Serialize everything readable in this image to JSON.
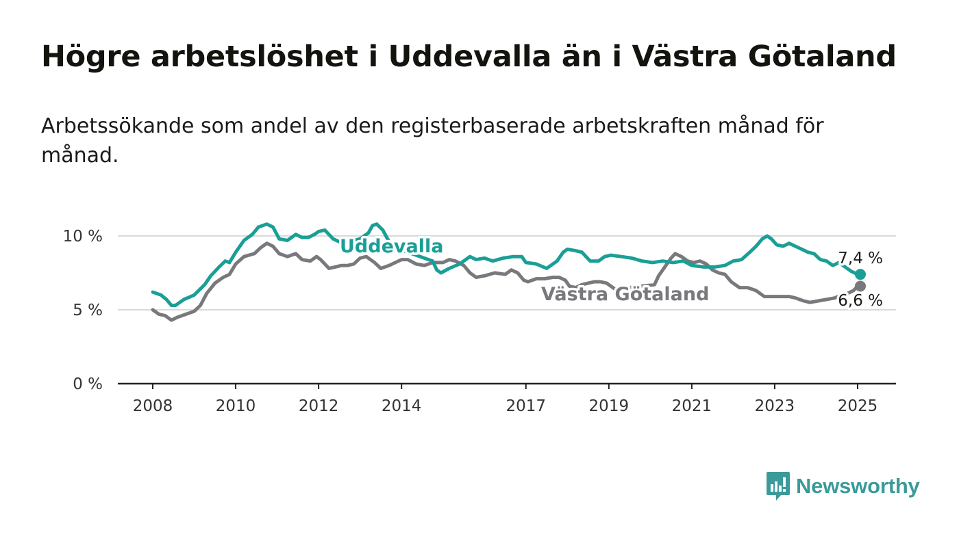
{
  "title": "Högre arbetslöshet i Uddevalla än i Västra Götaland",
  "subtitle": "Arbetssökande som andel av den registerbaserade arbetskraften månad för månad.",
  "brand": {
    "name": "Newsworthy",
    "color": "#3b9a9a",
    "icon": "newsworthy-logo-icon"
  },
  "chart_data": {
    "type": "line",
    "title": "Högre arbetslöshet i Uddevalla än i Västra Götaland",
    "subtitle": "Arbetssökande som andel av den registerbaserade arbetskraften månad för månad.",
    "xlabel": "",
    "ylabel": "",
    "x_unit": "year (decimal, monthly)",
    "xlim": [
      2008,
      2025
    ],
    "ylim": [
      0,
      10
    ],
    "x_ticks": [
      2008,
      2010,
      2012,
      2014,
      2017,
      2019,
      2021,
      2023,
      2025
    ],
    "y_ticks": [
      0,
      5,
      10
    ],
    "y_tick_labels": [
      "0 %",
      "5 %",
      "10 %"
    ],
    "x_tick_labels": [
      "2008",
      "2010",
      "2012",
      "2014",
      "2017",
      "2019",
      "2021",
      "2023",
      "2025"
    ],
    "grid": "horizontal",
    "legend": "inline labels",
    "series": [
      {
        "name": "Uddevalla",
        "color": "#1a9f96",
        "end_label": "7,4 %",
        "points": [
          [
            2008.0,
            6.2
          ],
          [
            2008.2,
            6.0
          ],
          [
            2008.33,
            5.7
          ],
          [
            2008.45,
            5.3
          ],
          [
            2008.55,
            5.3
          ],
          [
            2008.75,
            5.7
          ],
          [
            2009.0,
            6.0
          ],
          [
            2009.25,
            6.7
          ],
          [
            2009.4,
            7.3
          ],
          [
            2009.6,
            7.9
          ],
          [
            2009.75,
            8.3
          ],
          [
            2009.85,
            8.2
          ],
          [
            2010.0,
            8.9
          ],
          [
            2010.2,
            9.7
          ],
          [
            2010.4,
            10.1
          ],
          [
            2010.55,
            10.6
          ],
          [
            2010.75,
            10.8
          ],
          [
            2010.9,
            10.6
          ],
          [
            2011.05,
            9.8
          ],
          [
            2011.25,
            9.7
          ],
          [
            2011.45,
            10.1
          ],
          [
            2011.6,
            9.9
          ],
          [
            2011.75,
            9.9
          ],
          [
            2011.9,
            10.1
          ],
          [
            2012.0,
            10.3
          ],
          [
            2012.15,
            10.4
          ],
          [
            2012.35,
            9.8
          ],
          [
            2012.5,
            9.6
          ],
          [
            2012.6,
            9.6
          ],
          [
            2012.7,
            9.5
          ],
          [
            2012.85,
            9.7
          ],
          [
            2013.0,
            9.8
          ],
          [
            2013.2,
            10.2
          ],
          [
            2013.3,
            10.7
          ],
          [
            2013.4,
            10.8
          ],
          [
            2013.55,
            10.4
          ],
          [
            2013.7,
            9.6
          ],
          [
            2013.85,
            9.2
          ],
          [
            2014.75,
            8.3
          ],
          [
            2014.85,
            7.7
          ],
          [
            2014.95,
            7.5
          ],
          [
            2015.15,
            7.8
          ],
          [
            2015.4,
            8.1
          ],
          [
            2015.65,
            8.6
          ],
          [
            2015.8,
            8.4
          ],
          [
            2016.0,
            8.5
          ],
          [
            2016.2,
            8.3
          ],
          [
            2016.45,
            8.5
          ],
          [
            2016.7,
            8.6
          ],
          [
            2016.9,
            8.6
          ],
          [
            2017.0,
            8.2
          ],
          [
            2017.25,
            8.1
          ],
          [
            2017.5,
            7.8
          ],
          [
            2017.75,
            8.3
          ],
          [
            2017.9,
            8.9
          ],
          [
            2018.0,
            9.1
          ],
          [
            2018.2,
            9.0
          ],
          [
            2018.35,
            8.9
          ],
          [
            2018.55,
            8.3
          ],
          [
            2018.75,
            8.3
          ],
          [
            2018.9,
            8.6
          ],
          [
            2019.05,
            8.7
          ],
          [
            2019.3,
            8.6
          ],
          [
            2019.55,
            8.5
          ],
          [
            2019.8,
            8.3
          ],
          [
            2020.05,
            8.2
          ],
          [
            2020.3,
            8.3
          ],
          [
            2020.55,
            8.2
          ],
          [
            2020.8,
            8.3
          ],
          [
            2021.0,
            8.0
          ],
          [
            2021.3,
            7.9
          ],
          [
            2021.55,
            7.9
          ],
          [
            2021.8,
            8.0
          ],
          [
            2022.0,
            8.3
          ],
          [
            2022.2,
            8.4
          ],
          [
            2022.4,
            8.9
          ],
          [
            2022.55,
            9.3
          ],
          [
            2022.7,
            9.8
          ],
          [
            2022.82,
            10.0
          ],
          [
            2022.92,
            9.8
          ],
          [
            2023.05,
            9.4
          ],
          [
            2023.2,
            9.3
          ],
          [
            2023.35,
            9.5
          ],
          [
            2023.5,
            9.3
          ],
          [
            2023.65,
            9.1
          ],
          [
            2023.8,
            8.9
          ],
          [
            2023.95,
            8.8
          ],
          [
            2024.1,
            8.4
          ],
          [
            2024.25,
            8.3
          ],
          [
            2024.4,
            8.0
          ],
          [
            2024.55,
            8.2
          ],
          [
            2024.7,
            7.9
          ],
          [
            2024.85,
            7.6
          ],
          [
            2025.0,
            7.4
          ]
        ]
      },
      {
        "name": "Västra Götaland",
        "color": "#78787d",
        "end_label": "6,6 %",
        "points": [
          [
            2008.0,
            5.0
          ],
          [
            2008.15,
            4.7
          ],
          [
            2008.3,
            4.6
          ],
          [
            2008.45,
            4.3
          ],
          [
            2008.6,
            4.5
          ],
          [
            2008.8,
            4.7
          ],
          [
            2009.0,
            4.9
          ],
          [
            2009.15,
            5.3
          ],
          [
            2009.3,
            6.1
          ],
          [
            2009.5,
            6.8
          ],
          [
            2009.7,
            7.2
          ],
          [
            2009.85,
            7.4
          ],
          [
            2010.0,
            8.1
          ],
          [
            2010.2,
            8.6
          ],
          [
            2010.45,
            8.8
          ],
          [
            2010.6,
            9.2
          ],
          [
            2010.75,
            9.5
          ],
          [
            2010.9,
            9.3
          ],
          [
            2011.05,
            8.8
          ],
          [
            2011.25,
            8.6
          ],
          [
            2011.45,
            8.8
          ],
          [
            2011.6,
            8.4
          ],
          [
            2011.8,
            8.3
          ],
          [
            2011.95,
            8.6
          ],
          [
            2012.05,
            8.4
          ],
          [
            2012.25,
            7.8
          ],
          [
            2012.4,
            7.9
          ],
          [
            2012.55,
            8.0
          ],
          [
            2012.7,
            8.0
          ],
          [
            2012.85,
            8.1
          ],
          [
            2013.0,
            8.5
          ],
          [
            2013.15,
            8.6
          ],
          [
            2013.35,
            8.2
          ],
          [
            2013.5,
            7.8
          ],
          [
            2013.7,
            8.0
          ],
          [
            2013.85,
            8.2
          ],
          [
            2014.0,
            8.4
          ],
          [
            2014.15,
            8.4
          ],
          [
            2014.35,
            8.1
          ],
          [
            2014.55,
            8.0
          ],
          [
            2014.75,
            8.2
          ],
          [
            2014.9,
            8.2
          ],
          [
            2015.0,
            8.2
          ],
          [
            2015.15,
            8.4
          ],
          [
            2015.3,
            8.3
          ],
          [
            2015.5,
            8.0
          ],
          [
            2015.65,
            7.5
          ],
          [
            2015.8,
            7.2
          ],
          [
            2016.0,
            7.3
          ],
          [
            2016.25,
            7.5
          ],
          [
            2016.5,
            7.4
          ],
          [
            2016.65,
            7.7
          ],
          [
            2016.8,
            7.5
          ],
          [
            2016.95,
            7.0
          ],
          [
            2017.05,
            6.9
          ],
          [
            2017.25,
            7.1
          ],
          [
            2017.45,
            7.1
          ],
          [
            2017.65,
            7.2
          ],
          [
            2017.8,
            7.2
          ],
          [
            2017.95,
            7.0
          ],
          [
            2018.05,
            6.6
          ],
          [
            2018.2,
            6.5
          ],
          [
            2018.35,
            6.7
          ],
          [
            2018.5,
            6.8
          ],
          [
            2018.65,
            6.9
          ],
          [
            2018.8,
            6.9
          ],
          [
            2018.95,
            6.8
          ],
          [
            2019.15,
            6.4
          ],
          [
            2020.1,
            6.7
          ],
          [
            2020.2,
            7.3
          ],
          [
            2020.35,
            7.9
          ],
          [
            2020.5,
            8.5
          ],
          [
            2020.6,
            8.8
          ],
          [
            2020.75,
            8.6
          ],
          [
            2020.9,
            8.3
          ],
          [
            2021.05,
            8.2
          ],
          [
            2021.2,
            8.3
          ],
          [
            2021.35,
            8.1
          ],
          [
            2021.5,
            7.7
          ],
          [
            2021.65,
            7.5
          ],
          [
            2021.8,
            7.4
          ],
          [
            2021.95,
            6.9
          ],
          [
            2022.15,
            6.5
          ],
          [
            2022.35,
            6.5
          ],
          [
            2022.55,
            6.3
          ],
          [
            2022.75,
            5.9
          ],
          [
            2023.0,
            5.9
          ],
          [
            2023.2,
            5.9
          ],
          [
            2023.35,
            5.9
          ],
          [
            2023.5,
            5.8
          ],
          [
            2023.7,
            5.6
          ],
          [
            2023.85,
            5.5
          ],
          [
            2024.05,
            5.6
          ],
          [
            2024.25,
            5.7
          ],
          [
            2024.45,
            5.8
          ],
          [
            2024.6,
            6.0
          ],
          [
            2024.75,
            6.1
          ],
          [
            2024.9,
            6.3
          ],
          [
            2025.0,
            6.6
          ]
        ]
      }
    ]
  }
}
